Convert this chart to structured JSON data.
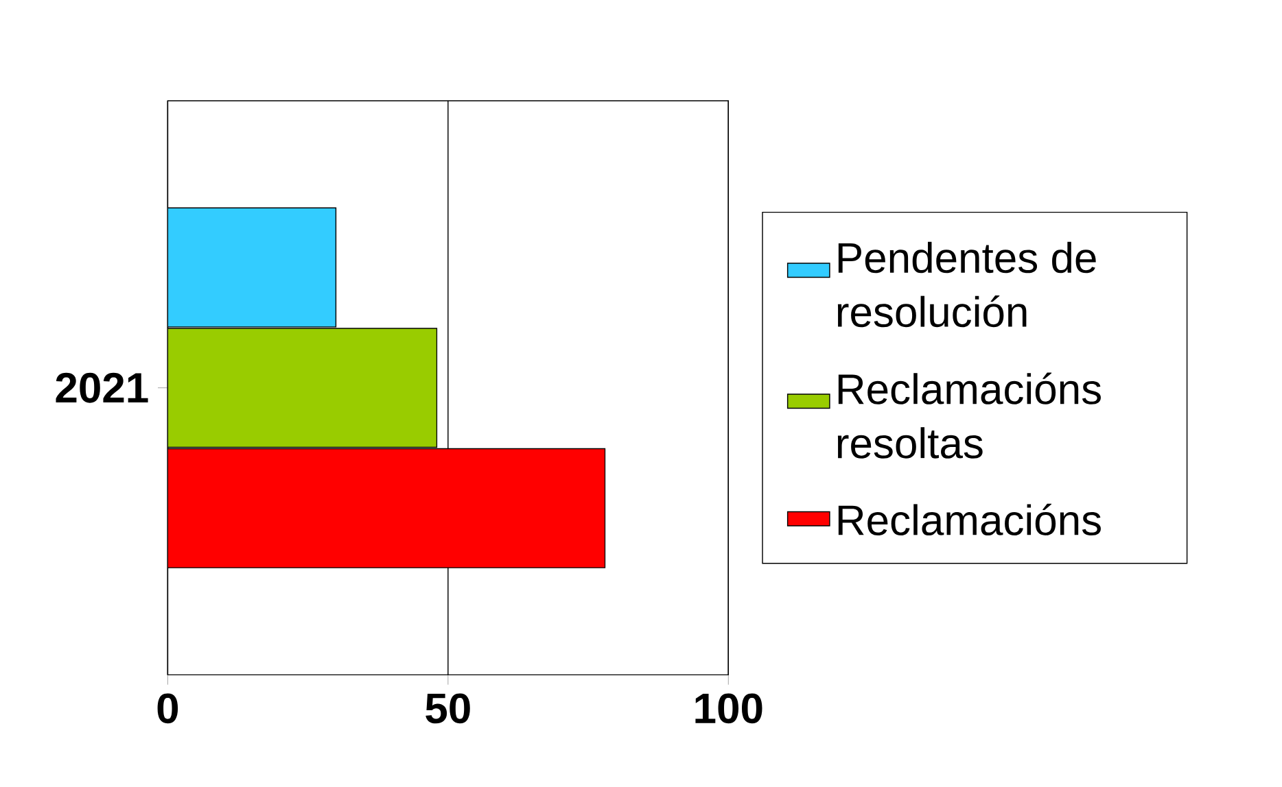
{
  "chart_data": {
    "type": "bar",
    "orientation": "horizontal",
    "categories": [
      "2021"
    ],
    "series": [
      {
        "name": "Pendentes de resolución",
        "color": "#33ccff",
        "values": [
          30
        ]
      },
      {
        "name": "Reclamacións resoltas",
        "color": "#99cc00",
        "values": [
          48
        ]
      },
      {
        "name": "Reclamacións",
        "color": "#ff0000",
        "values": [
          78
        ]
      }
    ],
    "xlim": [
      0,
      100
    ],
    "xticks": [
      0,
      50,
      100
    ],
    "grid": "x",
    "legend": "right"
  }
}
